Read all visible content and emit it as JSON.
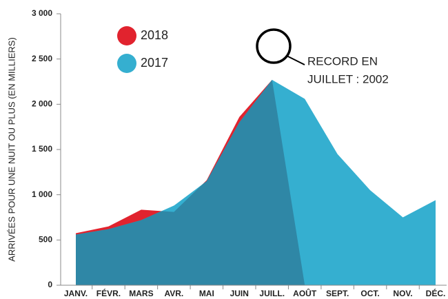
{
  "chart_data": {
    "type": "area",
    "y_label": "ARRIVÉES POUR UNE NUIT OU PLUS (EN MILLIERS)",
    "categories": [
      "JANV.",
      "FÉVR.",
      "MARS",
      "AVR.",
      "MAI",
      "JUIN",
      "JUILL.",
      "AOÛT",
      "SEPT.",
      "OCT.",
      "NOV.",
      "DÉC."
    ],
    "series": [
      {
        "name": "2018",
        "color": "#e1232e",
        "values": [
          575,
          650,
          835,
          810,
          1160,
          1860,
          2270,
          null,
          null,
          null,
          null,
          null
        ]
      },
      {
        "name": "2017",
        "color": "#35afd0",
        "values": [
          560,
          620,
          720,
          880,
          1150,
          1800,
          2270,
          2060,
          1450,
          1050,
          750,
          940
        ]
      }
    ],
    "overlap_color": "#2f87a6",
    "annotation": [
      "RECORD EN",
      "JUILLET : 2002"
    ],
    "ylim": [
      0,
      3000
    ],
    "yticks": [
      0,
      500,
      {
        "value": 1000,
        "label": "1 000"
      },
      {
        "value": 1500,
        "label": "1 500"
      },
      {
        "value": 2000,
        "label": "2 000"
      },
      {
        "value": 2500,
        "label": "2 500"
      },
      {
        "value": 3000,
        "label": "3 000"
      }
    ]
  }
}
